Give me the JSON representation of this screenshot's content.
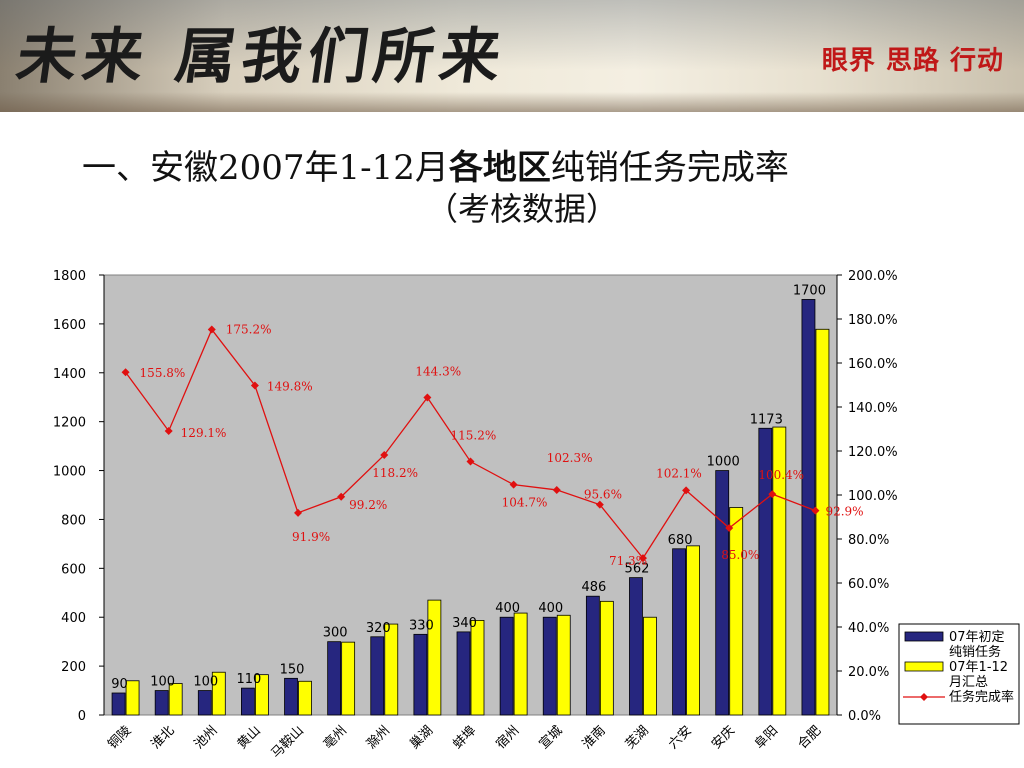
{
  "banner": {
    "slogan": "未来 属我们所来",
    "tagline": "眼界  思路  行动"
  },
  "title": {
    "line1_prefix": "一、安徽2007年1-12月",
    "line1_bold": "各地区",
    "line1_suffix": "纯销任务完成率",
    "line2": "（考核数据）"
  },
  "chart_data": {
    "type": "bar",
    "categories": [
      "铜陵",
      "淮北",
      "池州",
      "黄山",
      "马鞍山",
      "亳州",
      "滁州",
      "巢湖",
      "蚌埠",
      "宿州",
      "宣城",
      "淮南",
      "芜湖",
      "六安",
      "安庆",
      "阜阳",
      "合肥"
    ],
    "series": [
      {
        "name": "07年初定纯销任务",
        "type": "bar",
        "color": "#26267f",
        "values": [
          90,
          100,
          100,
          110,
          150,
          300,
          320,
          330,
          340,
          400,
          400,
          486,
          562,
          680,
          1000,
          1173,
          1700
        ],
        "labels": [
          "90",
          "100",
          "100",
          "110",
          "150",
          "300",
          "320",
          "330",
          "340",
          "400",
          "400",
          "486",
          "562",
          "680",
          "1000",
          "1173",
          "1700"
        ]
      },
      {
        "name": "07年1-12月汇总",
        "type": "bar",
        "color": "#ffff00",
        "values": [
          140,
          129,
          175,
          165,
          138,
          298,
          372,
          470,
          387,
          417,
          408,
          465,
          400,
          692,
          849,
          1178,
          1578
        ]
      },
      {
        "name": "任务完成率",
        "type": "line",
        "axis": "right",
        "color": "#e01010",
        "values": [
          155.8,
          129.1,
          175.2,
          149.8,
          91.9,
          99.2,
          118.2,
          144.3,
          115.2,
          104.7,
          102.3,
          95.6,
          71.3,
          102.1,
          85.0,
          100.4,
          92.9
        ],
        "labels": [
          "155.8%",
          "129.1%",
          "175.2%",
          "149.8%",
          "91.9%",
          "99.2%",
          "118.2%",
          "144.3%",
          "115.2%",
          "104.7%",
          "102.3%",
          "95.6%",
          "71.3%",
          "102.1%",
          "85.0%",
          "100.4%",
          "92.9%"
        ]
      }
    ],
    "left_axis": {
      "min": 0,
      "max": 1800,
      "ticks": [
        "0",
        "200",
        "400",
        "600",
        "800",
        "1000",
        "1200",
        "1400",
        "1600",
        "1800"
      ]
    },
    "right_axis": {
      "min": 0,
      "max": 200,
      "ticks": [
        "0.0%",
        "20.0%",
        "40.0%",
        "60.0%",
        "80.0%",
        "100.0%",
        "120.0%",
        "140.0%",
        "160.0%",
        "180.0%",
        "200.0%"
      ]
    },
    "legend": {
      "position": "bottom-right",
      "entries": [
        "07年初定纯销任务",
        "07年1-12月汇总",
        "任务完成率"
      ]
    },
    "plot_background": "#c0c0c0"
  }
}
